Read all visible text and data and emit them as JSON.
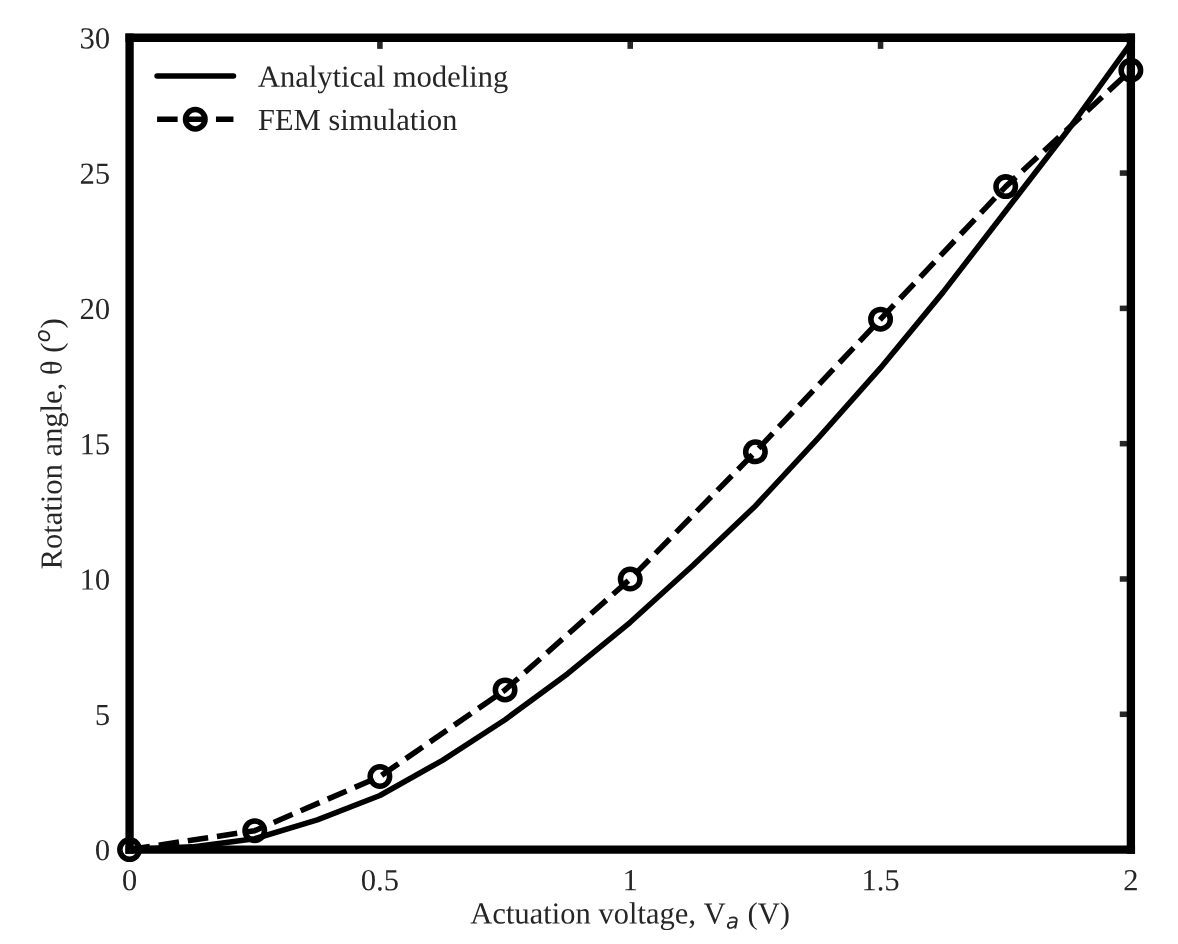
{
  "chart_data": {
    "type": "line",
    "xlabel": "Actuation voltage, V$_{a}$ (V)",
    "ylabel": "Rotation angle, θ ($^{o}$)",
    "xlim": [
      0,
      2
    ],
    "ylim": [
      0,
      30
    ],
    "xticks": [
      0,
      0.5,
      1,
      1.5,
      2
    ],
    "yticks": [
      0,
      5,
      10,
      15,
      20,
      25,
      30
    ],
    "grid": false,
    "legend": "top left",
    "series": [
      {
        "name": "Analytical modeling",
        "color": "#000000",
        "line_style": "solid",
        "marker": "none",
        "x": [
          0,
          0.125,
          0.25,
          0.375,
          0.5,
          0.625,
          0.75,
          0.875,
          1,
          1.125,
          1.25,
          1.375,
          1.5,
          1.625,
          1.75,
          1.875,
          2
        ],
        "values": [
          0,
          0.1,
          0.4,
          1.1,
          2.0,
          3.3,
          4.8,
          6.5,
          8.4,
          10.5,
          12.7,
          15.2,
          17.8,
          20.6,
          23.6,
          26.6,
          29.8
        ]
      },
      {
        "name": "FEM simulation",
        "color": "#000000",
        "line_style": "dashed",
        "marker": "circle",
        "x": [
          0,
          0.25,
          0.5,
          0.75,
          1,
          1.25,
          1.5,
          1.75,
          2
        ],
        "values": [
          0,
          0.7,
          2.7,
          5.9,
          10.0,
          14.7,
          19.6,
          24.5,
          28.8
        ]
      }
    ]
  }
}
